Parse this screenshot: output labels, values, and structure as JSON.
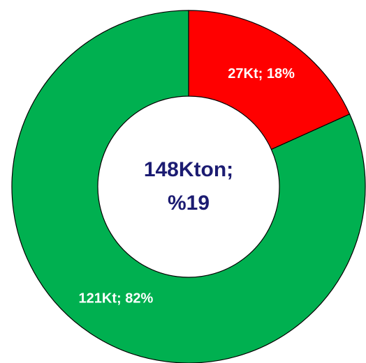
{
  "chart_data": {
    "type": "donut",
    "categories": [
      null,
      null
    ],
    "values": [
      27,
      121
    ],
    "value_labels": [
      "27Kt; 18%",
      "121Kt; 82%"
    ],
    "colors": [
      "#ff0000",
      "#00b050"
    ],
    "center_label": [
      "148Kton;",
      "%19"
    ]
  }
}
